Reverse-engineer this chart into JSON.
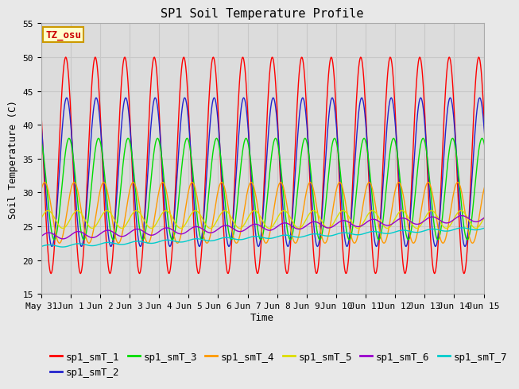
{
  "title": "SP1 Soil Temperature Profile",
  "xlabel": "Time",
  "ylabel": "Soil Temperature (C)",
  "ylim": [
    15,
    55
  ],
  "xlim_days": [
    0,
    15
  ],
  "tick_labels": [
    "May 31",
    "Jun 1",
    "Jun 2",
    "Jun 3",
    "Jun 4",
    "Jun 5",
    "Jun 6",
    "Jun 7",
    "Jun 8",
    "Jun 9",
    "Jun 10",
    "Jun 11",
    "Jun 12",
    "Jun 13",
    "Jun 14",
    "Jun 15"
  ],
  "yticks": [
    15,
    20,
    25,
    30,
    35,
    40,
    45,
    50,
    55
  ],
  "series_colors": [
    "#ff0000",
    "#2222cc",
    "#00dd00",
    "#ff9900",
    "#dddd00",
    "#9900cc",
    "#00cccc"
  ],
  "series_labels": [
    "sp1_smT_1",
    "sp1_smT_2",
    "sp1_smT_3",
    "sp1_smT_4",
    "sp1_smT_5",
    "sp1_smT_6",
    "sp1_smT_7"
  ],
  "tz_label": "TZ_osu",
  "tz_bg": "#ffffcc",
  "tz_border": "#cc9900",
  "tz_text_color": "#cc0000",
  "plot_bg_color": "#dcdcdc",
  "fig_bg_color": "#e8e8e8",
  "grid_color": "#c8c8c8",
  "title_fontsize": 11,
  "axis_label_fontsize": 9,
  "tick_fontsize": 8,
  "legend_fontsize": 9
}
